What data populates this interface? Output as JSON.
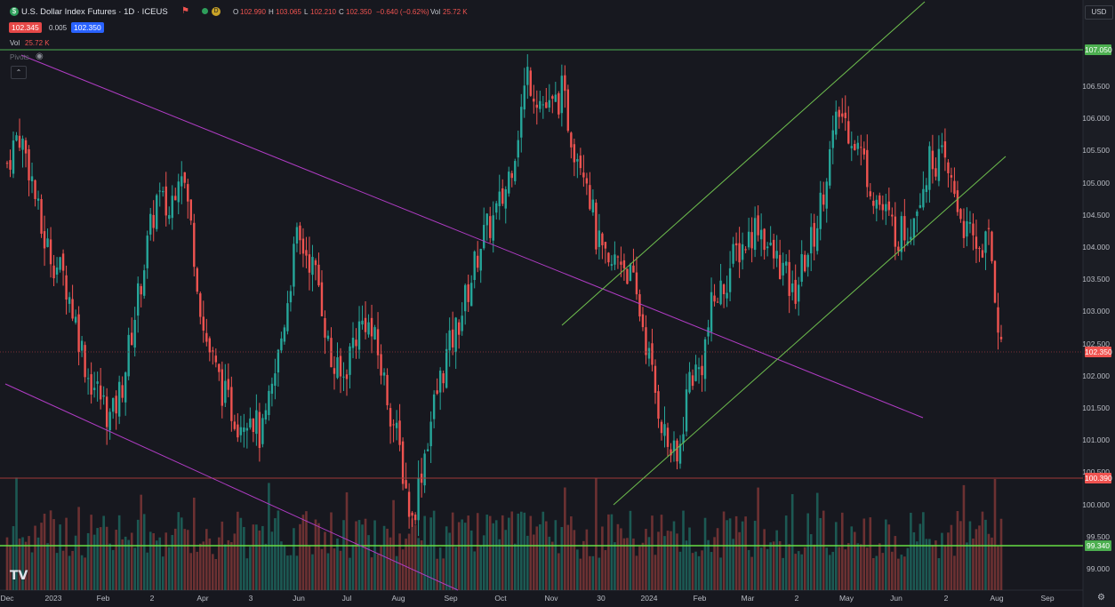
{
  "header": {
    "symbol_icon": "dollar-circle-icon",
    "title": "U.S. Dollar Index Futures · 1D · ICEUS",
    "flag_icon": "flag-icon",
    "status_icon": "market-status-dot",
    "delayed_badge": "D",
    "ohlc": {
      "o_label": "O",
      "o_value": "102.990",
      "h_label": "H",
      "h_value": "103.065",
      "l_label": "L",
      "l_value": "102.210",
      "c_label": "C",
      "c_value": "102.350",
      "change": "−0.640 (−0.62%)",
      "vol_label": "Vol",
      "vol_value": "25.72 K"
    },
    "bid": "102.345",
    "spread": "0.005",
    "ask": "102.350"
  },
  "indicators": {
    "vol_label": "Vol",
    "vol_value": "25.72 K",
    "pivots_label": "Pivots",
    "eye_icon": "eye-icon",
    "collapse_icon": "chevron-up-icon"
  },
  "price_axis": {
    "currency": "USD",
    "labels": [
      "106.500",
      "106.000",
      "105.500",
      "105.000",
      "104.500",
      "104.000",
      "103.500",
      "103.000",
      "102.500",
      "102.000",
      "101.500",
      "101.000",
      "100.500",
      "100.000",
      "99.500",
      "99.000"
    ],
    "tags": [
      {
        "value": "107.050",
        "color": "#4caf50"
      },
      {
        "value": "102.350",
        "color": "#ef5350"
      },
      {
        "value": "100.390",
        "color": "#ef5350"
      },
      {
        "value": "99.340",
        "color": "#4caf50"
      }
    ]
  },
  "time_axis": {
    "labels": [
      "Dec",
      "2023",
      "Feb",
      "2",
      "Apr",
      "3",
      "Jun",
      "Jul",
      "Aug",
      "Sep",
      "Oct",
      "Nov",
      "30",
      "2024",
      "Feb",
      "Mar",
      "2",
      "May",
      "Jun",
      "2",
      "Aug",
      "Sep"
    ]
  },
  "footer": {
    "logo": "TV",
    "settings_icon": "settings-icon"
  },
  "colors": {
    "background": "#17181f",
    "up": "#26a69a",
    "down": "#ef5350",
    "support": "#4caf50",
    "trendline": "#b03cc4",
    "channel": "#6fbf4e",
    "bid": "#ef5350",
    "ask": "#2962ff"
  },
  "chart_data": {
    "type": "candlestick",
    "symbol": "U.S. Dollar Index Futures",
    "interval": "1D",
    "ylim": [
      98.6,
      107.6
    ],
    "horizontal_levels": [
      107.05,
      100.39,
      99.34
    ],
    "last_price": 102.35,
    "series": [
      {
        "name": "close",
        "values": [
          105.3,
          105.8,
          105.2,
          104.2,
          103.8,
          103.5,
          102.8,
          102.0,
          101.7,
          101.3,
          101.9,
          102.9,
          103.9,
          104.8,
          104.5,
          105.4,
          104.2,
          102.7,
          102.1,
          101.6,
          101.3,
          101.5,
          101.0,
          101.8,
          102.9,
          104.1,
          103.9,
          103.4,
          102.2,
          101.9,
          102.6,
          102.9,
          102.4,
          101.6,
          100.8,
          99.7,
          100.7,
          101.6,
          102.3,
          102.8,
          103.4,
          104.1,
          104.4,
          104.8,
          105.6,
          106.7,
          106.3,
          106.1,
          106.4,
          105.6,
          105.3,
          104.1,
          103.6,
          103.9,
          103.5,
          102.8,
          101.8,
          101.0,
          100.6,
          102.0,
          102.1,
          103.1,
          103.4,
          103.9,
          104.1,
          104.4,
          103.9,
          103.7,
          103.2,
          103.8,
          104.3,
          105.3,
          106.1,
          105.8,
          105.4,
          104.8,
          104.5,
          104.2,
          104.3,
          104.9,
          105.4,
          105.3,
          104.8,
          104.2,
          104.0,
          104.1,
          102.4
        ]
      }
    ]
  }
}
